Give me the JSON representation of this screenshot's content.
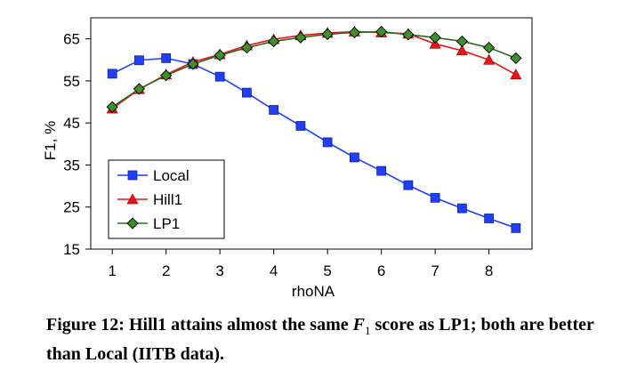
{
  "chart_data": {
    "type": "line",
    "title": "",
    "xlabel": "rhoNA",
    "ylabel": "F1, %",
    "xlim": [
      0.6,
      8.8
    ],
    "ylim": [
      15,
      70
    ],
    "x_ticks": [
      1,
      2,
      3,
      4,
      5,
      6,
      7,
      8
    ],
    "y_ticks": [
      15,
      25,
      35,
      45,
      55,
      65
    ],
    "grid": false,
    "legend_position": "bottom-left",
    "x": [
      1,
      1.5,
      2,
      2.5,
      3,
      3.5,
      4,
      4.5,
      5,
      5.5,
      6,
      6.5,
      7,
      7.5,
      8,
      8.5
    ],
    "series": [
      {
        "name": "Local",
        "color": "#1f3fff",
        "marker": "square",
        "values": [
          56.7,
          59.9,
          60.4,
          59.0,
          56.0,
          52.2,
          48.1,
          44.3,
          40.4,
          36.8,
          33.6,
          30.2,
          27.2,
          24.7,
          22.3,
          20.0
        ]
      },
      {
        "name": "Hill1",
        "color": "#e8141a",
        "marker": "triangle",
        "values": [
          48.4,
          53.0,
          56.5,
          59.5,
          61.3,
          63.4,
          64.9,
          65.8,
          66.4,
          66.7,
          66.5,
          66.2,
          63.8,
          62.2,
          60.0,
          56.5
        ]
      },
      {
        "name": "LP1",
        "color": "#2e6b1e",
        "marker": "diamond",
        "values": [
          48.8,
          53.1,
          56.3,
          59.0,
          61.1,
          62.9,
          64.4,
          65.3,
          66.1,
          66.5,
          66.7,
          66.0,
          65.3,
          64.4,
          62.9,
          60.4
        ]
      }
    ]
  },
  "caption": {
    "prefix": "Figure 12: Hill1 attains almost the same ",
    "f_symbol": "F",
    "f_subscript": "1",
    "suffix": " score as LP1; both are better than Local (IITB data)."
  }
}
